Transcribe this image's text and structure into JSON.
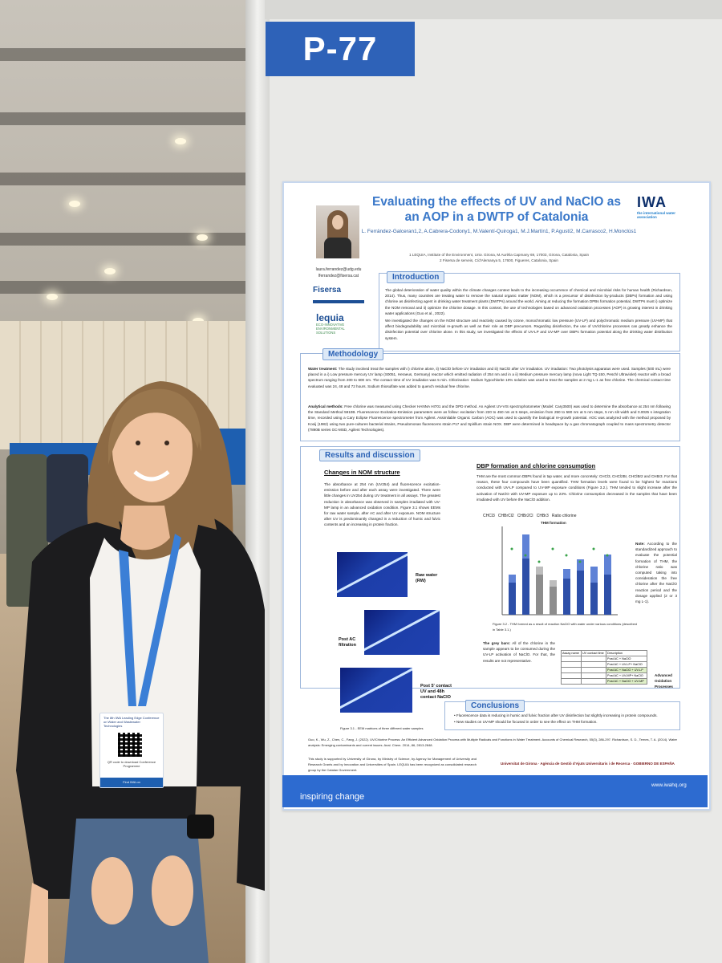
{
  "poster_number": "P-77",
  "poster": {
    "title": "Evaluating the effects of UV and NaClO as an AOP in a DWTP of Catalonia",
    "authors": "L. Ferrández-Galceran1,2, A.Cabrera-Codony1, M.Valentí-Quiroga1, M.J.Martín1, P.Agustí2, M.Carrasco2, H.Monclús1",
    "affiliation_1": "1 LEQUIA, Institute of the Environment, Univ. Girona, M.Aurèlia Capmany 69, 17003, Girona, Catalonia, Spain",
    "affiliation_2": "2 Fisersa de serveis, C/d'Alemanya 5, 17600, Figueres, Catalonia, Spain",
    "emails": [
      "laura.ferrandez@udg.edu",
      "lferrandez@fisersa.cat"
    ],
    "logo_fisersa": "Fisersa",
    "logo_lequia": "lequia",
    "logo_lequia_sub": "ECO-INNOVATIVE ENVIRONMENTAL SOLUTIONS",
    "logo_iwa": "IWA",
    "logo_iwa_sub": "the international water association",
    "sections": {
      "introduction": "Introduction",
      "methodology": "Methodology",
      "results": "Results and discussion",
      "conclusions": "Conclusions"
    },
    "intro_text": "The global deterioration of water quality within the climate changes context leads to the increasing occurrence of chemical and microbial risks for human health (Richardson, 2014). Thus, many countries are treating water to remove the natural organic matter (NOM), which is a precursor of disinfection by-products (DBPs) formation and using chlorine as disinfecting agent in drinking water treatment plants (DWTPs) around the world. Aiming at reducing the formation DPBs formation potential, DWTPs must i) optimize the NOM removal and ii) optimize the chlorine dosage. In this context, the use of technologies based on advanced oxidation processes (AOP) is growing interest in drinking water applications (Guo et al., 2022).",
    "intro_text_2": "We investigated the changes on the NOM structure and reactivity caused by ozone, monochromatic low pressure (UV-LP) and polychromatic medium pressure (UV-MP) that affect biodegradability and microbial re-growth as well as their role as DBP precursors. Regarding disinfection, the use of UV/chlorine processes can greatly enhance the disinfection potential over chlorine alone. In this study, we investigated the effects of UV-LP and UV-MP over DBPs formation potential along the drinking water distribution system.",
    "water_treatment_label": "Water treatment:",
    "methods_text": "The study involved treat the samples with i) chlorine alone, ii) NaClO before UV irradiation and iii) NaClO after UV irradiation. UV irradiation: Two photolysis apparatus were used. Samples (500 mL) were placed in a i) Low pressure mercury UV lamp (S0051, Heraeus, Germany) reactor which emitted radiation of 254 nm and in a ii) Medium pressure mercury lamp (nova Light TQ-150, Peschl Ultraviolet) reactor with a broad spectrum ranging from 200 to 600 nm. The contact time of UV irradiation was 5 min. Chlorination: Sodium hypochlorite 10% solution was used to treat the samples at 2 mg L-1 as free chlorine. The chemical contact time evaluated was 24, 48 and 72 hours. Sodium thiosulfate was added to quench residual free chlorine.",
    "analytical_label": "Analytical methods:",
    "analytical_text": "Free chlorine was measured using Checker HANNA HI701 and the DPD method. An Agilent UV-VIS spectrophotometer (Model: Cary3500) was used to determine the absorbance at 254 nm following the Standard Method 5910B. Fluorescence Excitation-Emission parameters were as follow: excitation from 220 to 450 nm at 5 steps, emission from 250 to 580 nm at 5 nm steps, 5 nm slit width and 0.0025 s integration time, recorded using a Cary Eclipse Fluorescence spectrometer from Agilent. Assimilable Organic Carbon (AOC) was used to quantify the biological re-growth potential. AOC was analyzed with the method proposed by Kooij (1982) using two pure-cultures bacterial strains, Pseudomonas fluorescens strain P17 and Spirillum strain NOX. DBP were determined in headspace by a gas chromatograph coupled to mass spectrometry detector (7890B series GC-MSD, Agilent Technologies).",
    "nom_heading": "Changes in NOM structure",
    "nom_text": "The absorbance at 254 nm (UV254) and fluorescence excitation-emission before and after each assay were investigated. There were little changes in UV254 during UV treatment in all assays. The greatest reduction in absorbance was observed in samples irradiated with UV-MP lamp in an advanced oxidation condition. Figure 3.1 shows EEMs for raw water sample, after AC and after UV exposure. NOM structure after UV is predominantly changed in a reduction of humic and fulvic contents and an increasing in protein fraction.",
    "eem_labels": [
      "Raw water (RW)",
      "Post AC filtration",
      "Post 5' contact UV and 48h contact NaClO"
    ],
    "eem_caption": "Figure 3.1 - EEM matrices of three different water samples",
    "dbp_heading": "DBP formation and chlorine consumption",
    "dbp_text": "THM are the most common DBPs found in tap water, and more concretely: CHCl3, CHCl2Br, CHClBr2 and CHBr3. For that reason, these four compounds have been quantified. THM formation levels were found to be highest for reactions conducted with UV-LP compared to UV-MP exposure conditions (Figure 3.2.). THM tended to slight increase after the activation of NaClO with UV-MP exposure up to 23%. Chlorine consumption decreased in the samples that have been irradiated with UV before the NaClO addition.",
    "chart_legend": [
      "CHCl3",
      "CHBrCl2",
      "CHBr2Cl",
      "CHBr3",
      "Ratio chlorine"
    ],
    "chart_title": "THM formation",
    "note_title": "Note:",
    "note_text": "According to the standardized approach to evaluate the potential formation of THM, the chlorine ratio was computed taking into consideration the free chlorine after the NaClO reaction period and the dosage applied (2 or 3 mg L-1).",
    "chart_caption": "Figure 3.2 - THM formed as a result of reaction NaClO with water under various conditions (described in Table 3.1.)",
    "grey_bars_label": "The grey bars:",
    "grey_bars_text": "All of the chlorine in the sample appears to be consumed during the UV-LP activation of NaClO. For that, the results are not representative.",
    "table_header": [
      "Assay name",
      "UV contact time",
      "Description"
    ],
    "table_rows": [
      "Post AC + NaClO",
      "Post AC + UV-LP+ NaClO",
      "Post AC + NaClO + UV-LP",
      "Post AC + UV-MP+ NaClO",
      "Post AC + NaClO + UV-MP"
    ],
    "table_side_label": "Advanced Oxidation Processes",
    "conclusions": [
      "Fluorescence data is reducing in humic and fulvic fraction after UV disinfection but slightly increasing in protein compounds.",
      "New studies on UV-MP should be focused in order to see the effect on THM formation."
    ],
    "references": "Guo, K., Wu, Z., Chen, C., Fang, J. (2022). UV/Chlorine Process: An Efficient Advanced Oxidation Process with Multiple Radicals and Functions in Water Treatment. Accounts of Chemical Research, 55(3), 286-297. Richardson, S. D., Ternes, T. A. (2014). Water analysis: Emerging contaminants and current issues. Anal. Chem. 2014, 86, 2813-2848.",
    "funding": "This study is supported by University of Girona, by Ministry of Science, by Agency for Management of University and Research Grants and by Innovation and Universities of Spain. LEQUIA has been recognized as consolidated research group by the Catalan Government.",
    "logos_bottom": [
      "Universitat de Girona",
      "Agència de Gestió d'Ajuts Universitaris i de Recerca",
      "GOBIERNO DE ESPAÑA"
    ],
    "footer_slogan": "inspiring change",
    "footer_url": "www.iwahq.org"
  },
  "badge": {
    "event": "The 8th IWA Leading Edge Conference on Water and Wastewater Technologies",
    "caption": "QR code to download Conference Programme",
    "bottom": "Find IWA on"
  },
  "colors": {
    "poster_blue": "#2e62b8",
    "title_blue": "#3a78c9",
    "lanyard_blue": "#3b7fd6",
    "jacket": "#1c1c1e"
  }
}
